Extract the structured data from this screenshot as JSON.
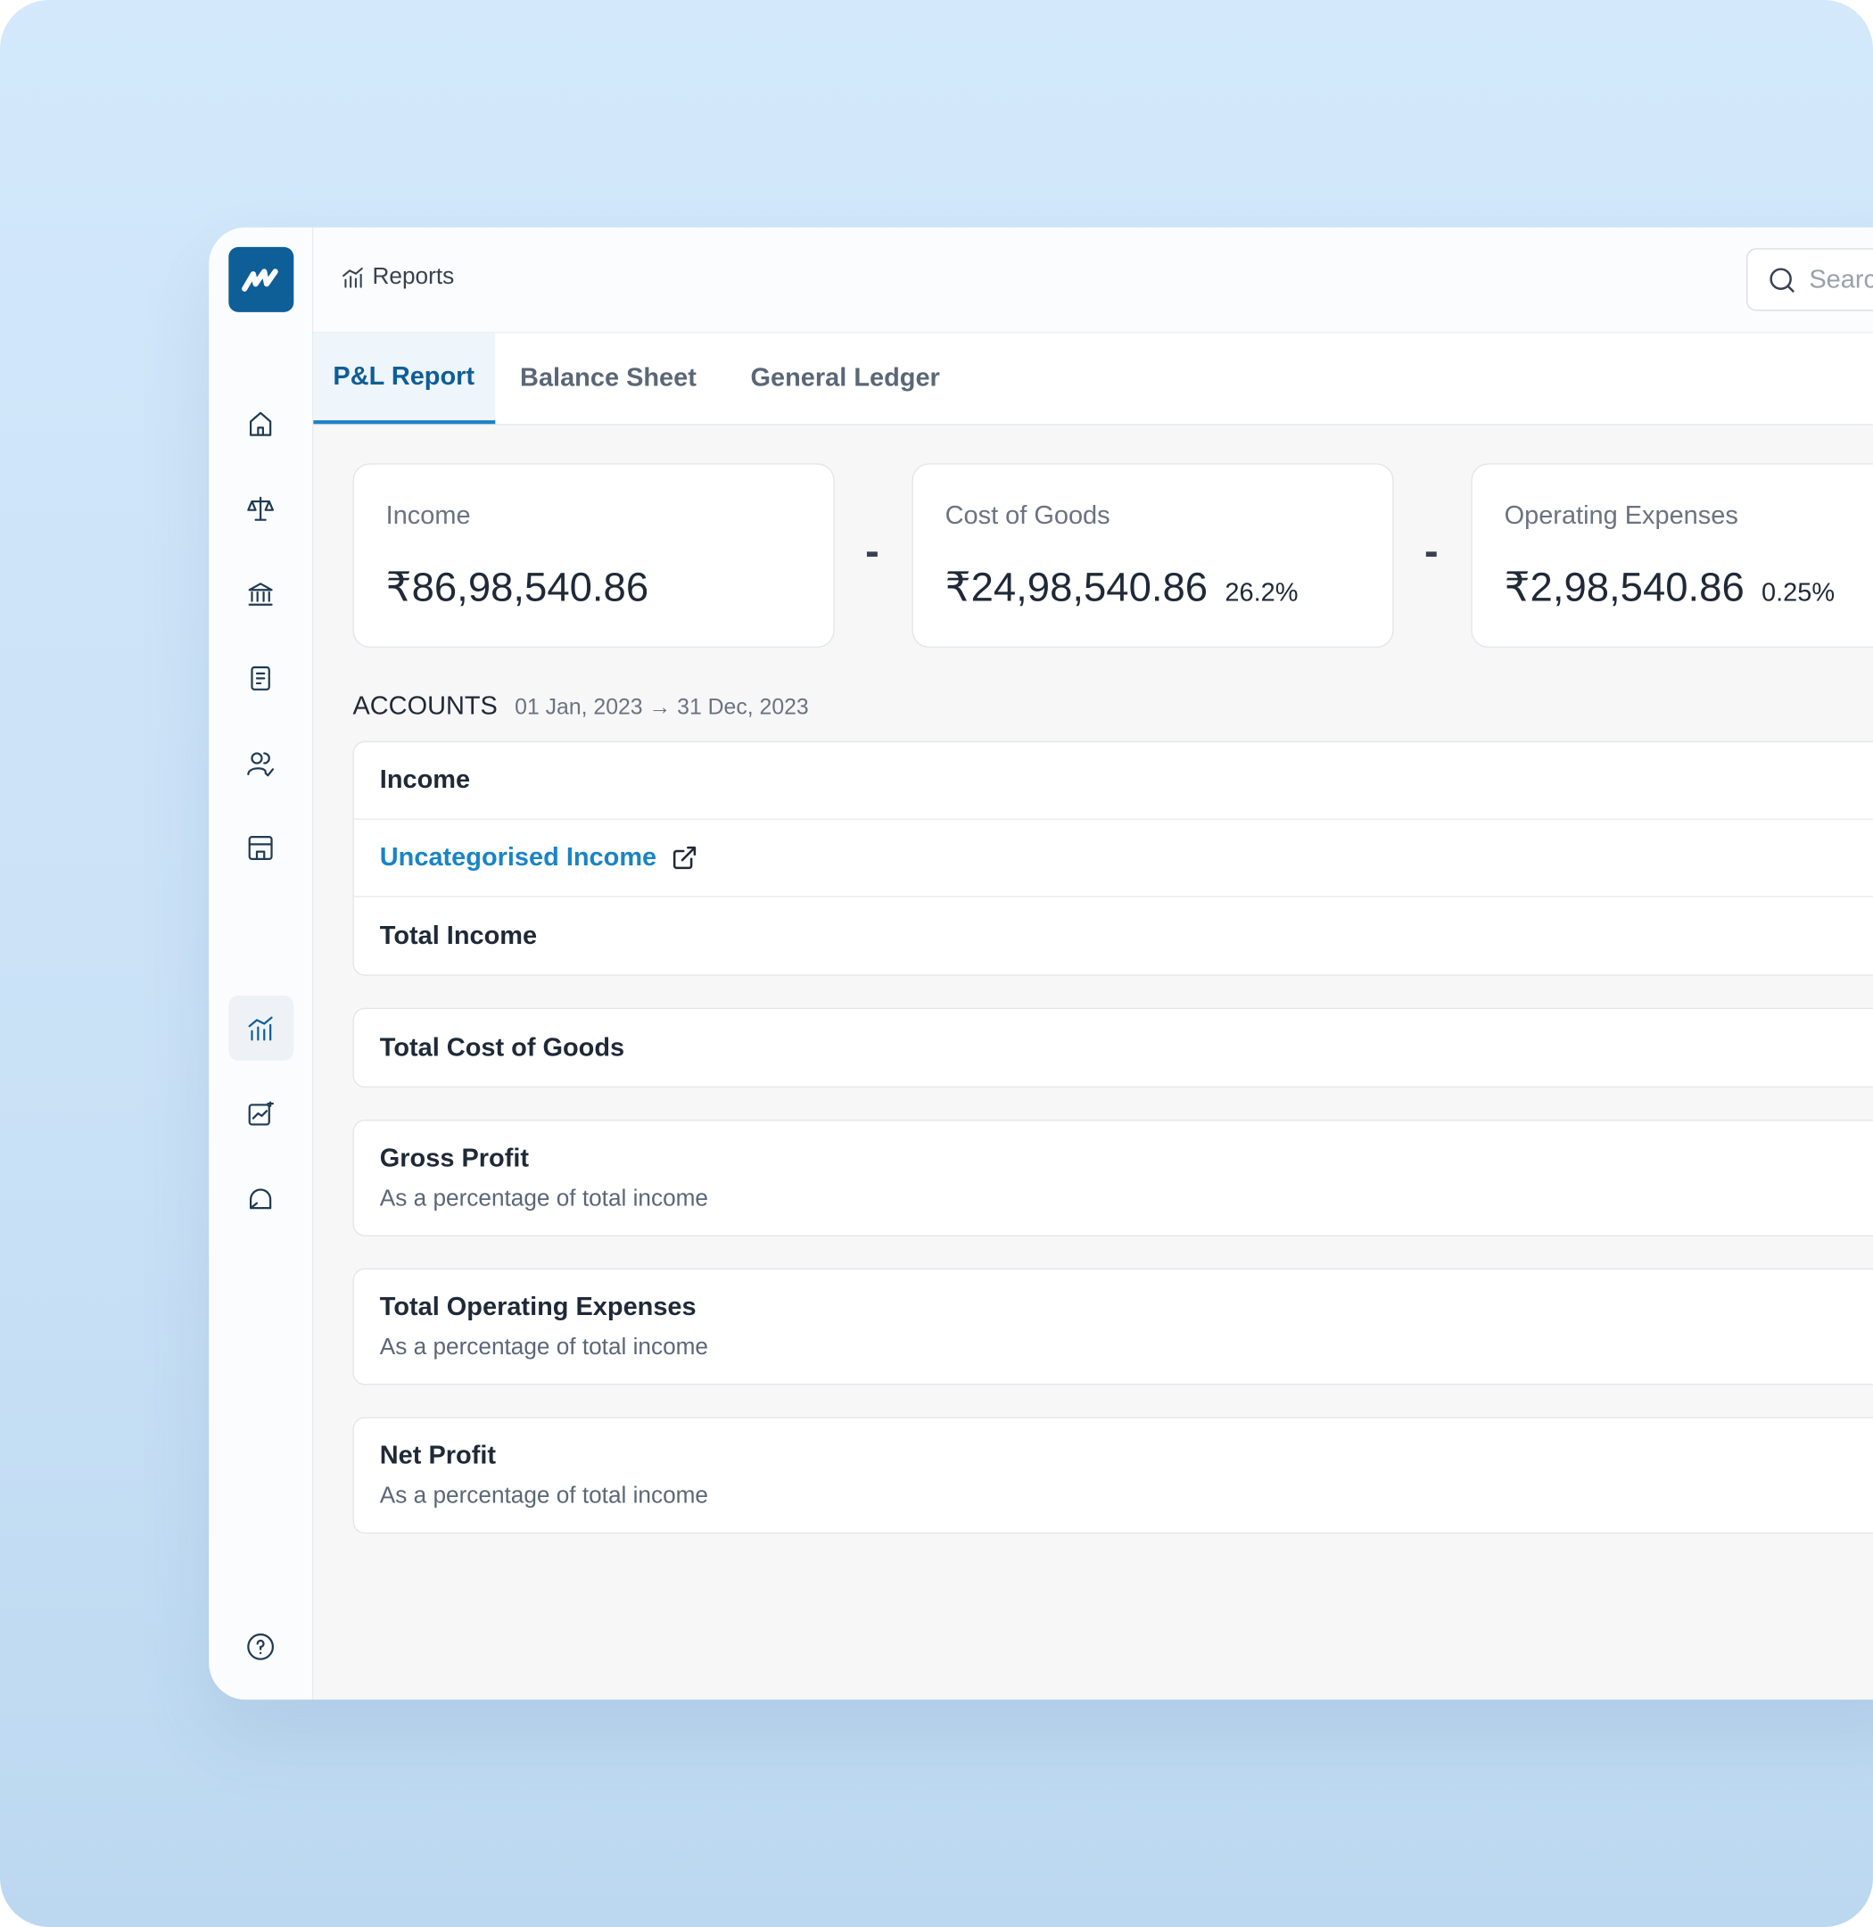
{
  "breadcrumb": "Reports",
  "search_placeholder": "Search",
  "tabs": [
    "P&L Report",
    "Balance Sheet",
    "General Ledger"
  ],
  "active_tab": 0,
  "summary_cards": [
    {
      "label": "Income",
      "amount": "₹86,98,540.86"
    },
    {
      "label": "Cost of Goods",
      "amount": "₹24,98,540.86",
      "percent": "26.2%"
    },
    {
      "label": "Operating Expenses",
      "amount": "₹2,98,540.86",
      "percent": "0.25%"
    }
  ],
  "operators": [
    "-",
    "-"
  ],
  "accounts": {
    "title": "ACCOUNTS",
    "period": "01 Jan, 2023 → 31 Dec, 2023"
  },
  "sections": [
    {
      "rows": [
        {
          "label": "Income"
        },
        {
          "label": "Uncategorised Income",
          "link": true
        },
        {
          "label": "Total Income"
        }
      ]
    },
    {
      "rows": [
        {
          "label": "Total Cost of Goods"
        }
      ]
    },
    {
      "rows": [
        {
          "label": "Gross Profit",
          "sub": "As a percentage of total income"
        }
      ]
    },
    {
      "rows": [
        {
          "label": "Total Operating Expenses",
          "sub": "As a percentage of total income"
        }
      ]
    },
    {
      "rows": [
        {
          "label": "Net Profit",
          "sub": "As a percentage of total income"
        }
      ]
    }
  ]
}
